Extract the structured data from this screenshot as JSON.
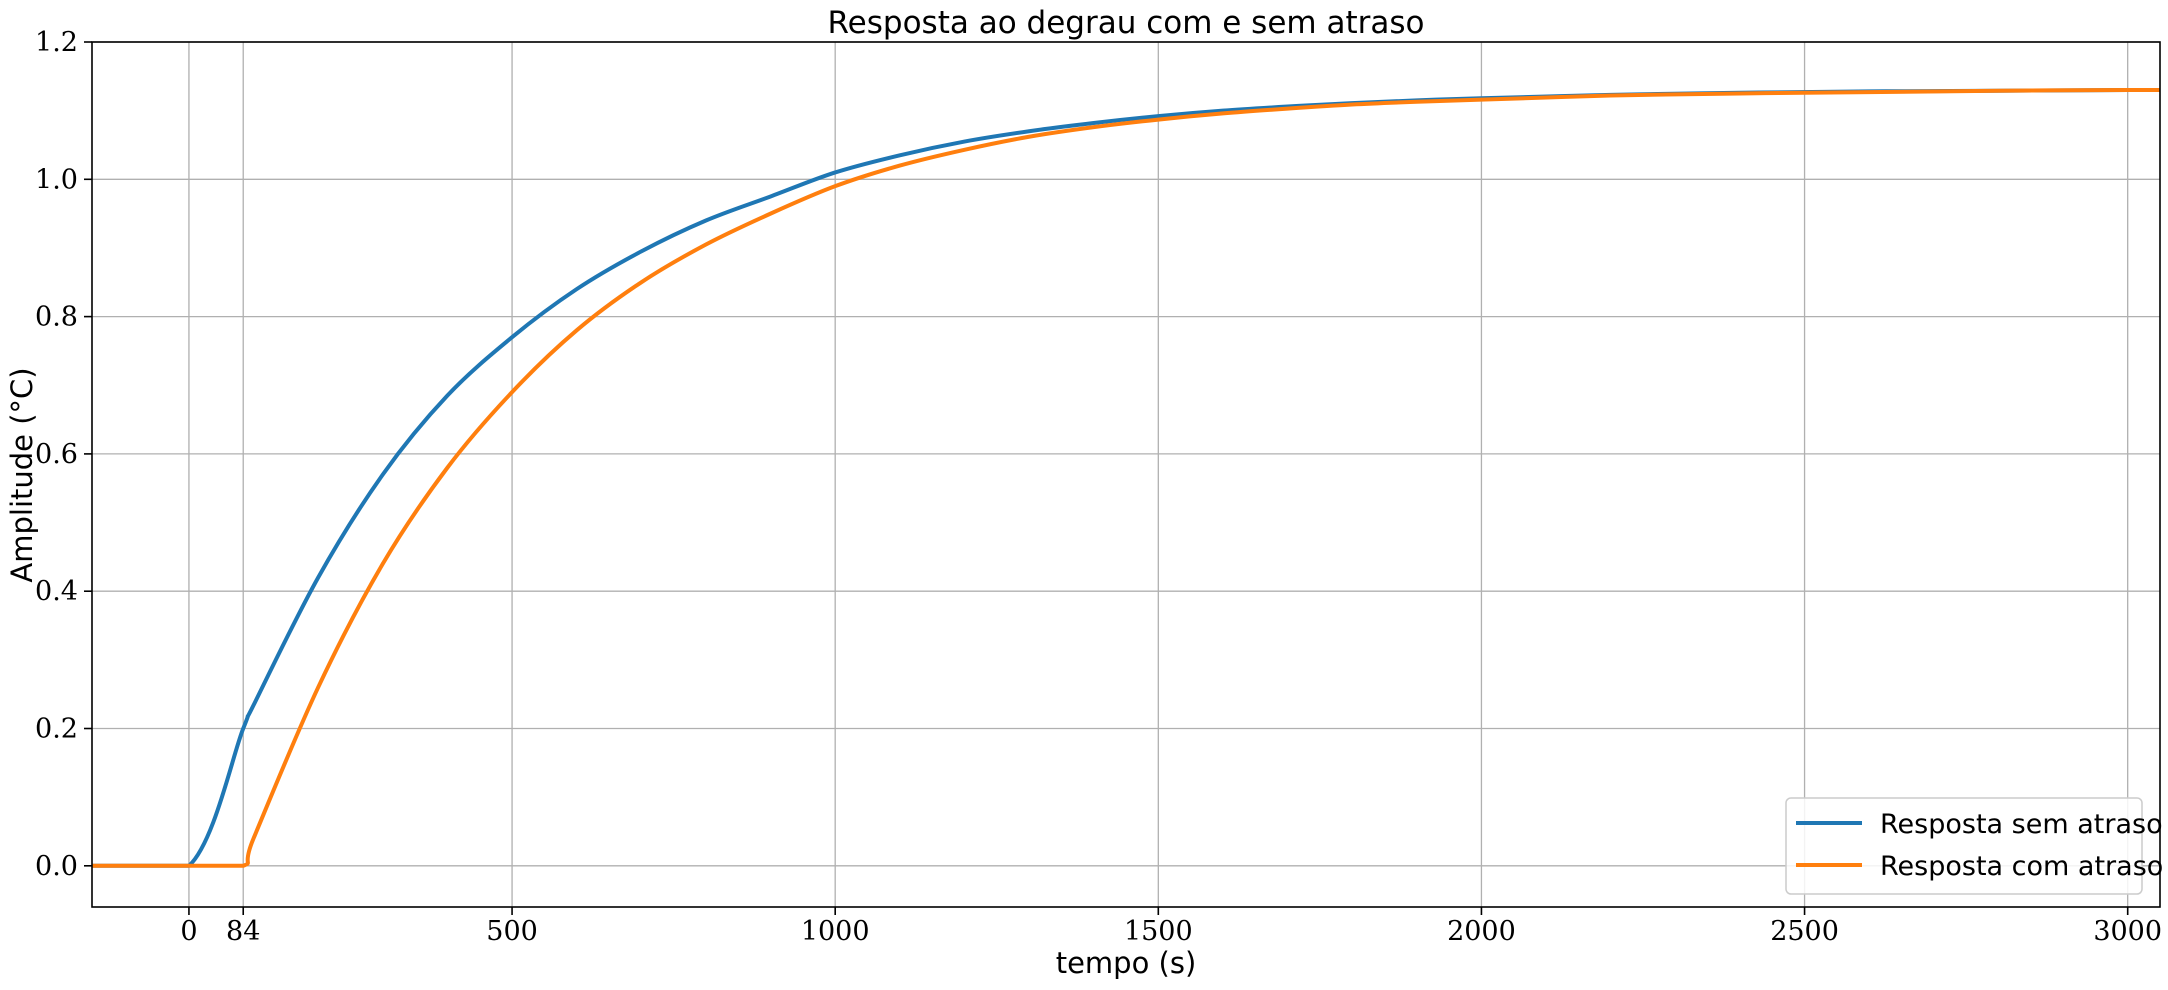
{
  "chart_data": {
    "type": "line",
    "title": "Resposta ao degrau com e sem atraso",
    "xlabel": "tempo (s)",
    "ylabel": "Amplitude (°C)",
    "xlim": [
      -150,
      3050
    ],
    "ylim": [
      -0.06,
      1.2
    ],
    "xticks": [
      0,
      84,
      500,
      1000,
      1500,
      2000,
      2500,
      3000
    ],
    "xtick_labels": [
      "0",
      "84",
      "500",
      "1000",
      "1500",
      "2000",
      "2500",
      "3000"
    ],
    "yticks": [
      0.0,
      0.2,
      0.4,
      0.6,
      0.8,
      1.0,
      1.2
    ],
    "ytick_labels": [
      "0.0",
      "0.2",
      "0.4",
      "0.6",
      "0.8",
      "1.0",
      "1.2"
    ],
    "grid": true,
    "legend_position": "bottom-right",
    "x": [
      -150,
      0,
      84,
      100,
      200,
      300,
      400,
      500,
      600,
      700,
      800,
      900,
      1000,
      1100,
      1200,
      1300,
      1400,
      1500,
      1600,
      1700,
      1800,
      1900,
      2000,
      2200,
      2400,
      2600,
      2800,
      3000,
      3050
    ],
    "series": [
      {
        "name": "Resposta sem atraso",
        "color": "#1f77b4",
        "values": [
          0.0,
          0.0,
          0.2,
          0.234,
          0.42,
          0.57,
          0.685,
          0.77,
          0.84,
          0.895,
          0.94,
          0.975,
          1.01,
          1.035,
          1.055,
          1.07,
          1.082,
          1.092,
          1.1,
          1.106,
          1.111,
          1.115,
          1.118,
          1.123,
          1.126,
          1.128,
          1.129,
          1.13,
          1.13
        ]
      },
      {
        "name": "Resposta com atraso",
        "color": "#ff7f0e",
        "values": [
          0.0,
          0.0,
          0.0,
          0.04,
          0.26,
          0.44,
          0.58,
          0.69,
          0.78,
          0.85,
          0.905,
          0.95,
          0.99,
          1.02,
          1.043,
          1.062,
          1.076,
          1.087,
          1.096,
          1.103,
          1.109,
          1.113,
          1.116,
          1.122,
          1.125,
          1.127,
          1.129,
          1.13,
          1.13
        ]
      }
    ]
  }
}
